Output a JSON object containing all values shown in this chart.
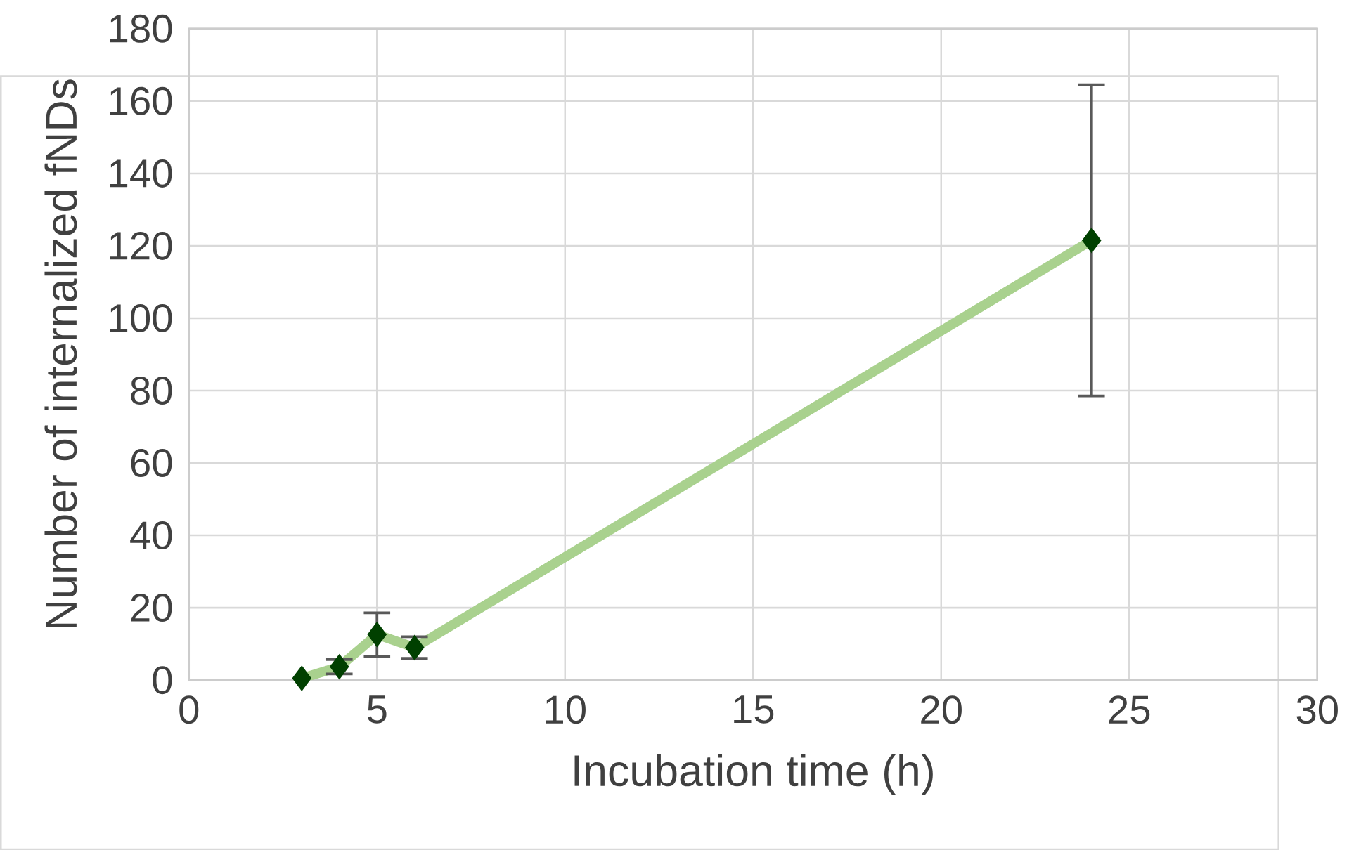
{
  "chart_data": {
    "type": "line",
    "xlabel": "Incubation time (h)",
    "ylabel": "Number of internalized fNDs",
    "x": [
      3,
      4,
      5,
      6,
      24
    ],
    "series": [
      {
        "color": "#a9d18e",
        "values": [
          0.5,
          3.7,
          12.6,
          9,
          121.5
        ],
        "errors": [
          null,
          2,
          6,
          3,
          43
        ]
      }
    ],
    "xlim": [
      0,
      30
    ],
    "xticks": [
      0,
      5,
      10,
      15,
      20,
      25,
      30
    ],
    "ylim": [
      0,
      180
    ],
    "yticks": [
      0,
      20,
      40,
      60,
      80,
      100,
      120,
      140,
      160,
      180
    ],
    "grid": true,
    "marker": "diamond",
    "line_style": "solid"
  }
}
